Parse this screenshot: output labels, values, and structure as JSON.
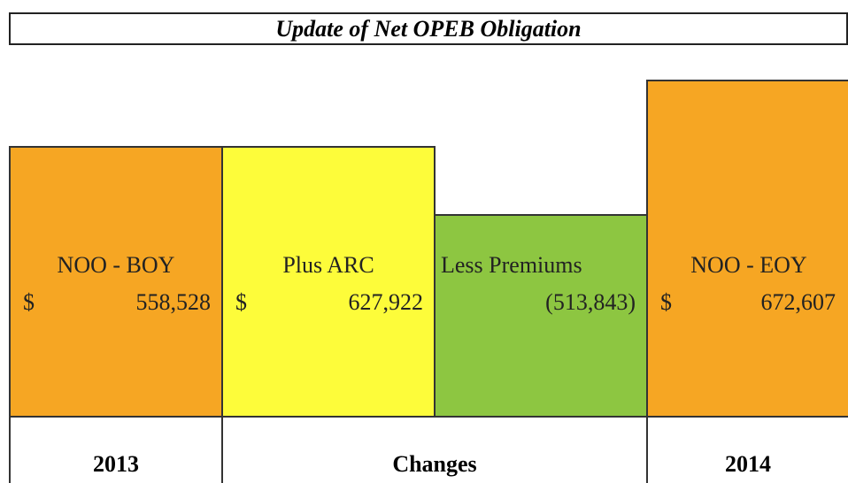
{
  "title": "Update of Net OPEB Obligation",
  "blocks": [
    {
      "label": "NOO - BOY",
      "currency": "$",
      "amount": "558,528"
    },
    {
      "label": "Plus ARC",
      "currency": "$",
      "amount": "627,922"
    },
    {
      "label": "Less Premiums",
      "amount": "(513,843)"
    },
    {
      "label": "NOO - EOY",
      "currency": "$",
      "amount": "672,607"
    }
  ],
  "footer": [
    "2013",
    "Changes",
    "2014"
  ]
}
